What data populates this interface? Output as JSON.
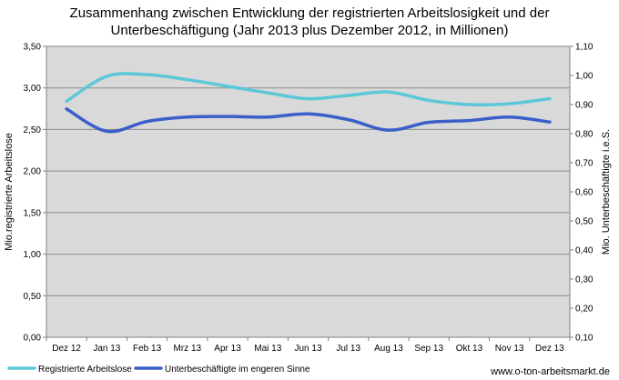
{
  "chart_data": {
    "type": "line",
    "title_lines": [
      "Zusammenhang zwischen Entwicklung der registrierten Arbeitslosigkeit und der",
      "Unterbeschäftigung (Jahr 2013 plus Dezember 2012, in Millionen)"
    ],
    "categories": [
      "Dez 12",
      "Jan 13",
      "Feb 13",
      "Mrz 13",
      "Apr 13",
      "Mai 13",
      "Jun 13",
      "Jul 13",
      "Aug 13",
      "Sep 13",
      "Okt 13",
      "Nov 13",
      "Dez 13"
    ],
    "ylabel_left": "Mio.registrierte Arbeitslose",
    "ylabel_right": "Mio. Unterbeschäftigte i.e.S.",
    "ylim_left": [
      0,
      3.5
    ],
    "ylim_right": [
      0.1,
      1.1
    ],
    "yticks_left": [
      "0,00",
      "0,50",
      "1,00",
      "1,50",
      "2,00",
      "2,50",
      "3,00",
      "3,50"
    ],
    "yticks_right": [
      "0,10",
      "0,20",
      "0,30",
      "0,40",
      "0,50",
      "0,60",
      "0,70",
      "0,80",
      "0,90",
      "1,00",
      "1,10"
    ],
    "series": [
      {
        "name": "Registrierte Arbeitslose",
        "axis": "left",
        "color": "#5BC8D8",
        "values": [
          2.84,
          3.14,
          3.16,
          3.1,
          3.02,
          2.94,
          2.87,
          2.91,
          2.95,
          2.85,
          2.8,
          2.81,
          2.87
        ]
      },
      {
        "name": "Unterbeschäftigte im engeren Sinne",
        "axis": "right",
        "color": "#3A5FC8",
        "values": [
          0.885,
          0.808,
          0.842,
          0.857,
          0.859,
          0.857,
          0.868,
          0.848,
          0.812,
          0.839,
          0.845,
          0.857,
          0.84
        ]
      }
    ],
    "source": "www.o-ton-arbeitsmarkt.de",
    "plot_background": "#D9D9D9",
    "grid": true
  }
}
